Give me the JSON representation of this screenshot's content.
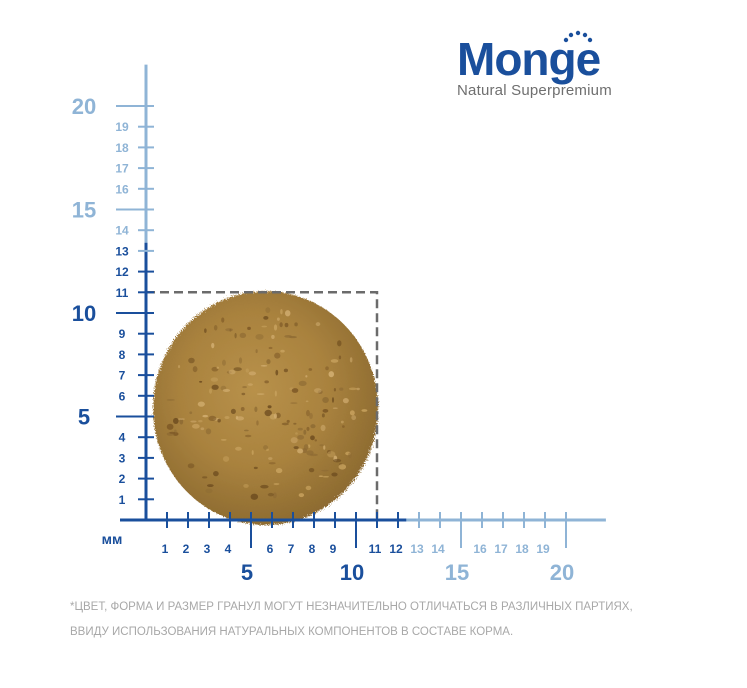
{
  "logo": {
    "brand": "Monge",
    "tagline": "Natural Superpremium"
  },
  "ruler": {
    "unit_label": "мм",
    "range": [
      0,
      20
    ],
    "y_minor_labels": [
      "1",
      "2",
      "3",
      "4",
      "6",
      "7",
      "8",
      "9",
      "11",
      "12",
      "13",
      "14",
      "16",
      "17",
      "18",
      "19"
    ],
    "y_major_labels": [
      "5",
      "10",
      "15",
      "20"
    ],
    "x_minor_labels": [
      "1",
      "2",
      "3",
      "4",
      "6",
      "7",
      "8",
      "9",
      "11",
      "12",
      "13",
      "14",
      "16",
      "17",
      "18",
      "19"
    ],
    "x_major_labels": [
      "5",
      "10",
      "15",
      "20"
    ],
    "kibble_size_mm": 11,
    "colors": {
      "dark": "#1a4f9c",
      "light": "#8fb4d6",
      "dashed": "#6b6b6b"
    }
  },
  "kibble": {
    "shape": "round",
    "color": "#a9823e"
  },
  "footnote": {
    "line1": "*ЦВЕТ, ФОРМА И РАЗМЕР ГРАНУЛ МОГУТ НЕЗНАЧИТЕЛЬНО ОТЛИЧАТЬСЯ В РАЗЛИЧНЫХ ПАРТИЯХ,",
    "line2": "ВВИДУ ИСПОЛЬЗОВАНИЯ НАТУРАЛЬНЫХ КОМПОНЕНТОВ В СОСТАВЕ КОРМА."
  }
}
